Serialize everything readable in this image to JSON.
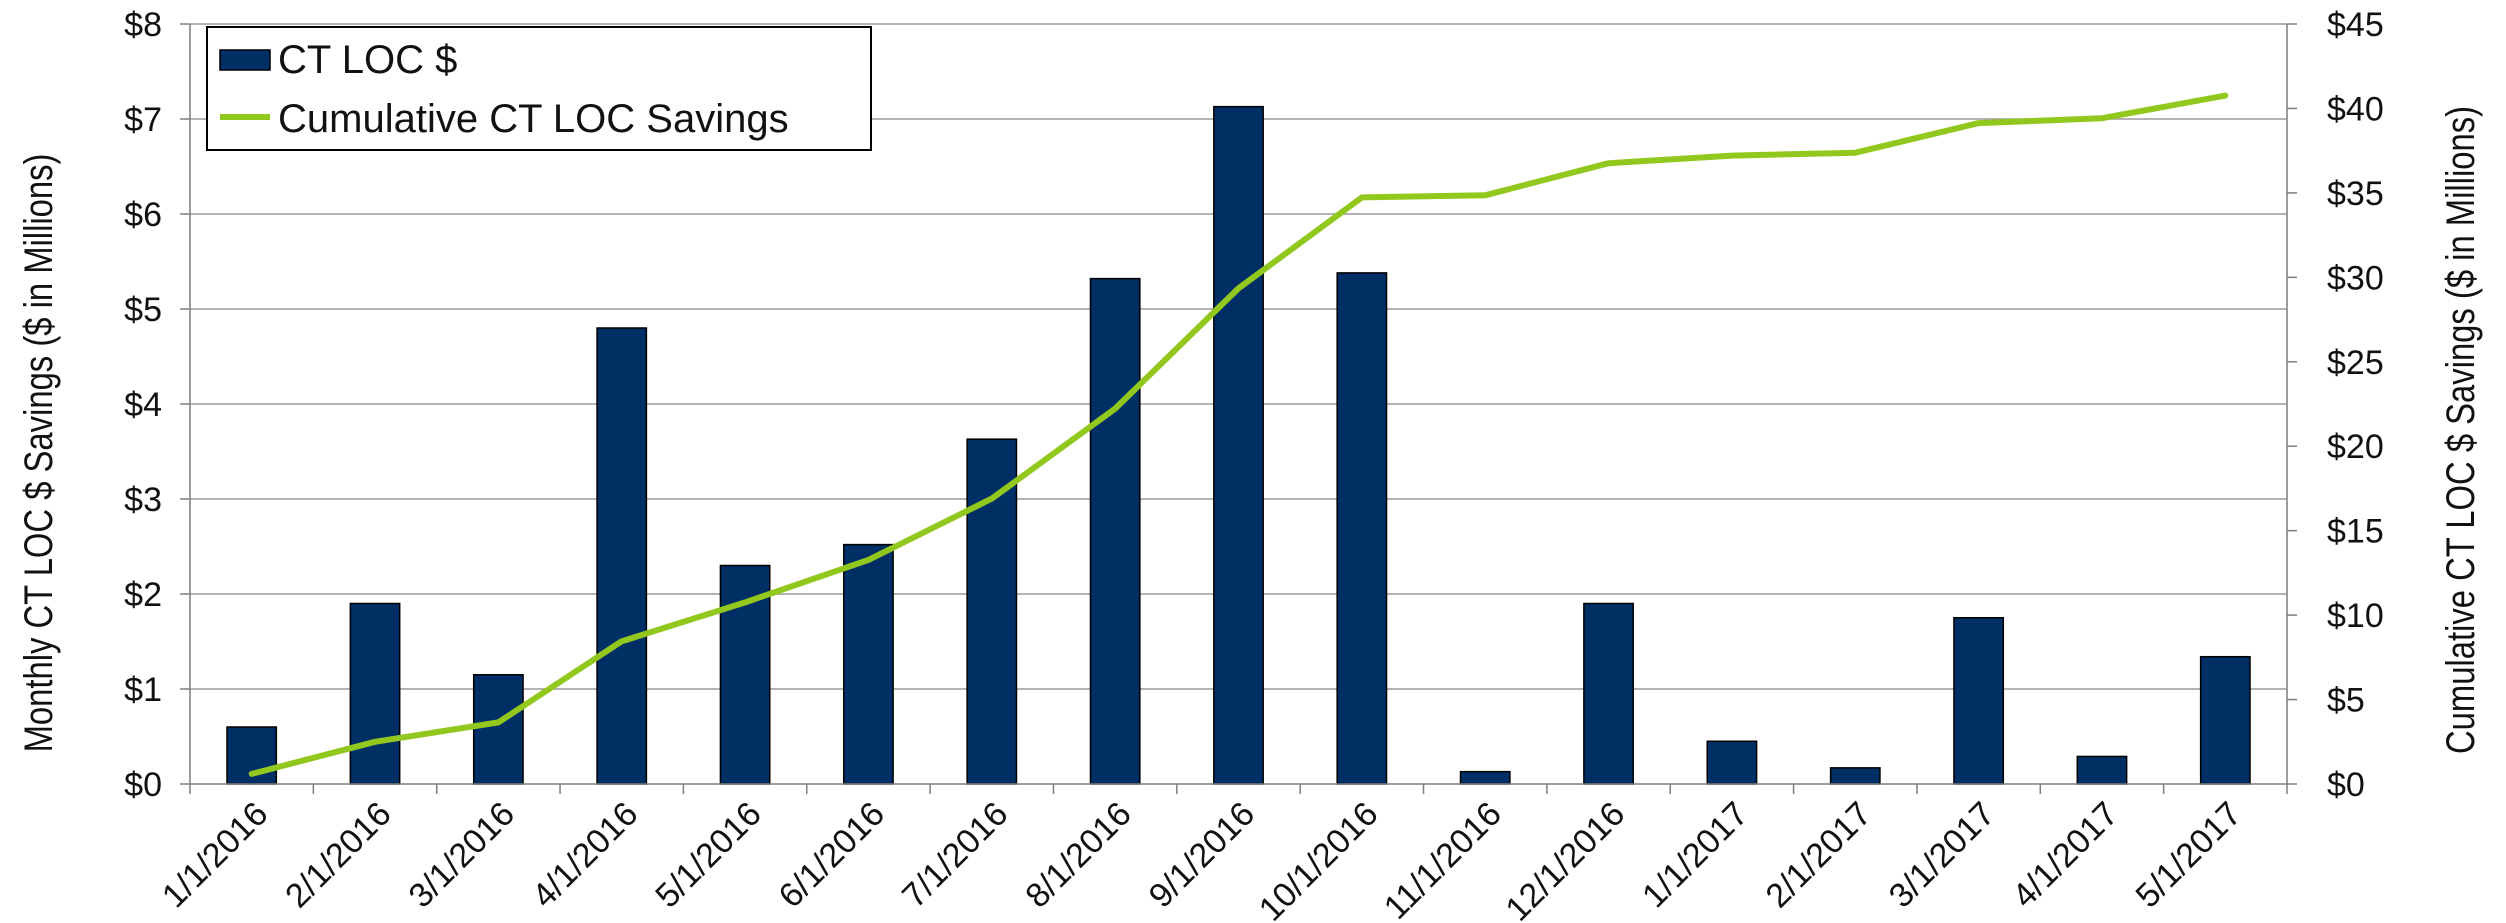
{
  "chart_data": {
    "type": "bar",
    "categories": [
      "1/1/2016",
      "2/1/2016",
      "3/1/2016",
      "4/1/2016",
      "5/1/2016",
      "6/1/2016",
      "7/1/2016",
      "8/1/2016",
      "9/1/2016",
      "10/1/2016",
      "11/1/2016",
      "12/1/2016",
      "1/1/2017",
      "2/1/2017",
      "3/1/2017",
      "4/1/2017",
      "5/1/2017"
    ],
    "series": [
      {
        "name": "CT LOC $",
        "type": "bar",
        "axis": "left",
        "color": "#002f66",
        "values": [
          0.6,
          1.9,
          1.15,
          4.8,
          2.3,
          2.52,
          3.63,
          5.32,
          7.13,
          5.38,
          0.13,
          1.9,
          0.45,
          0.17,
          1.75,
          0.29,
          1.34
        ]
      },
      {
        "name": "Cumulative CT LOC Savings",
        "type": "line",
        "axis": "right",
        "color": "#92c81e",
        "values": [
          0.6,
          2.5,
          3.65,
          8.45,
          10.75,
          13.27,
          16.9,
          22.22,
          29.35,
          34.73,
          34.86,
          36.76,
          37.21,
          37.38,
          39.13,
          39.42,
          40.76
        ]
      }
    ],
    "y_left": {
      "label": "Monthly  CT LOC $ Savings ($ in Millions)",
      "ylim": [
        0,
        8
      ],
      "ticks": [
        0,
        1,
        2,
        3,
        4,
        5,
        6,
        7,
        8
      ],
      "tick_labels": [
        "$0",
        "$1",
        "$2",
        "$3",
        "$4",
        "$5",
        "$6",
        "$7",
        "$8"
      ]
    },
    "y_right": {
      "label": "Cumulative CT LOC $ Savings ($ in Millions)",
      "ylim": [
        0,
        45
      ],
      "ticks": [
        0,
        5,
        10,
        15,
        20,
        25,
        30,
        35,
        40,
        45
      ],
      "tick_labels": [
        "$0",
        "$5",
        "$10",
        "$15",
        "$20",
        "$25",
        "$30",
        "$35",
        "$40",
        "$45"
      ]
    },
    "grid": true,
    "legend": {
      "position": "top-left"
    }
  }
}
